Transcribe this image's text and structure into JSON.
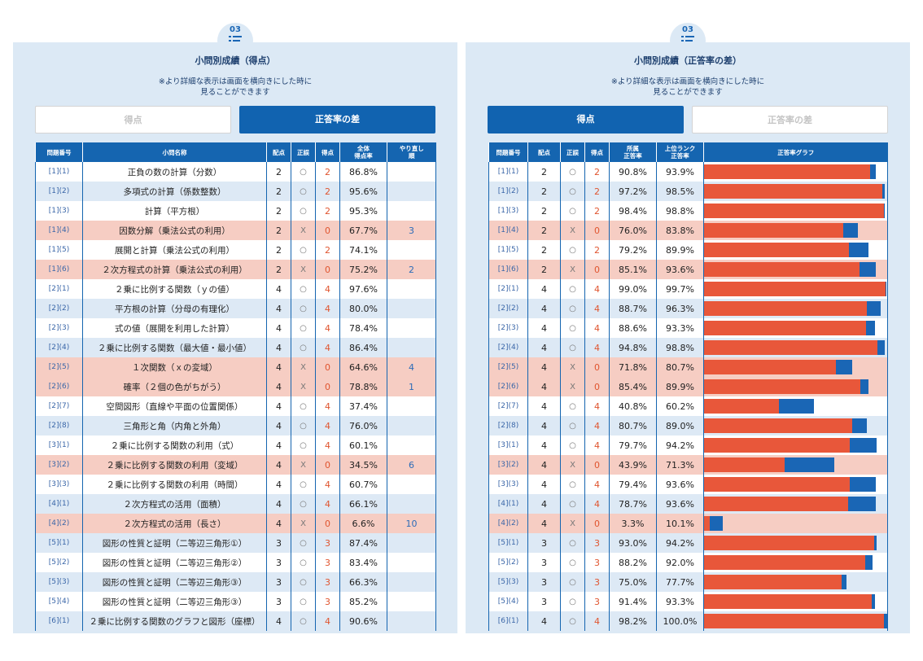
{
  "panels": [
    {
      "badge": "03",
      "title": "小問別成績（得点）",
      "note": [
        "※より詳細な表示は画面を横向きにした時に",
        "見ることができます"
      ],
      "buttons": [
        "得点",
        "正答率の差"
      ],
      "active": 1,
      "headers": [
        [
          "問題番号"
        ],
        [
          "小問名称"
        ],
        [
          "配点"
        ],
        [
          "正誤"
        ],
        [
          "得点"
        ],
        [
          "全体",
          "得点率"
        ],
        [
          "やり直し",
          "順"
        ]
      ]
    },
    {
      "badge": "03",
      "title": "小問別成績（正答率の差）",
      "note": [
        "※より詳細な表示は画面を横向きにした時に",
        "見ることができます"
      ],
      "buttons": [
        "得点",
        "正答率の差"
      ],
      "active": 0,
      "headers": [
        [
          "問題番号"
        ],
        [
          "配点"
        ],
        [
          "正誤"
        ],
        [
          "得点"
        ],
        [
          "所属",
          "正答率"
        ],
        [
          "上位ランク",
          "正答率"
        ],
        [
          "正答率グラフ"
        ]
      ]
    }
  ],
  "rows": [
    {
      "no": "[1](1)",
      "name": "正負の数の計算（分数）",
      "points": 2,
      "mark": "○",
      "score": 2,
      "rate": "86.8%",
      "own": 90.8,
      "own_label": "90.8%",
      "top": 93.9,
      "top_label": "93.9%"
    },
    {
      "no": "[1](2)",
      "name": "多項式の計算（係数整数）",
      "points": 2,
      "mark": "○",
      "score": 2,
      "rate": "95.6%",
      "own": 97.2,
      "own_label": "97.2%",
      "top": 98.5,
      "top_label": "98.5%"
    },
    {
      "no": "[1](3)",
      "name": "計算（平方根）",
      "points": 2,
      "mark": "○",
      "score": 2,
      "rate": "95.3%",
      "own": 98.4,
      "own_label": "98.4%",
      "top": 98.8,
      "top_label": "98.8%"
    },
    {
      "no": "[1](4)",
      "name": "因数分解（乗法公式の利用）",
      "points": 2,
      "mark": "X",
      "score": 0,
      "rate": "67.7%",
      "redo": 3,
      "own": 76.0,
      "own_label": "76.0%",
      "top": 83.8,
      "top_label": "83.8%"
    },
    {
      "no": "[1](5)",
      "name": "展開と計算（乗法公式の利用）",
      "points": 2,
      "mark": "○",
      "score": 2,
      "rate": "74.1%",
      "own": 79.2,
      "own_label": "79.2%",
      "top": 89.9,
      "top_label": "89.9%"
    },
    {
      "no": "[1](6)",
      "name": "２次方程式の計算（乗法公式の利用）",
      "points": 2,
      "mark": "X",
      "score": 0,
      "rate": "75.2%",
      "redo": 2,
      "own": 85.1,
      "own_label": "85.1%",
      "top": 93.6,
      "top_label": "93.6%"
    },
    {
      "no": "[2](1)",
      "name": "２乗に比例する関数（ｙの値）",
      "points": 4,
      "mark": "○",
      "score": 4,
      "rate": "97.6%",
      "own": 99.0,
      "own_label": "99.0%",
      "top": 99.7,
      "top_label": "99.7%"
    },
    {
      "no": "[2](2)",
      "name": "平方根の計算（分母の有理化）",
      "points": 4,
      "mark": "○",
      "score": 4,
      "rate": "80.0%",
      "own": 88.7,
      "own_label": "88.7%",
      "top": 96.3,
      "top_label": "96.3%"
    },
    {
      "no": "[2](3)",
      "name": "式の値（展開を利用した計算）",
      "points": 4,
      "mark": "○",
      "score": 4,
      "rate": "78.4%",
      "own": 88.6,
      "own_label": "88.6%",
      "top": 93.3,
      "top_label": "93.3%"
    },
    {
      "no": "[2](4)",
      "name": "２乗に比例する関数（最大値・最小値）",
      "points": 4,
      "mark": "○",
      "score": 4,
      "rate": "86.4%",
      "own": 94.8,
      "own_label": "94.8%",
      "top": 98.8,
      "top_label": "98.8%"
    },
    {
      "no": "[2](5)",
      "name": "１次関数（ｘの変域）",
      "points": 4,
      "mark": "X",
      "score": 0,
      "rate": "64.6%",
      "redo": 4,
      "own": 71.8,
      "own_label": "71.8%",
      "top": 80.7,
      "top_label": "80.7%"
    },
    {
      "no": "[2](6)",
      "name": "確率（２個の色がちがう）",
      "points": 4,
      "mark": "X",
      "score": 0,
      "rate": "78.8%",
      "redo": 1,
      "own": 85.4,
      "own_label": "85.4%",
      "top": 89.9,
      "top_label": "89.9%"
    },
    {
      "no": "[2](7)",
      "name": "空間図形（直線や平面の位置関係）",
      "points": 4,
      "mark": "○",
      "score": 4,
      "rate": "37.4%",
      "own": 40.8,
      "own_label": "40.8%",
      "top": 60.2,
      "top_label": "60.2%"
    },
    {
      "no": "[2](8)",
      "name": "三角形と角（内角と外角）",
      "points": 4,
      "mark": "○",
      "score": 4,
      "rate": "76.0%",
      "own": 80.7,
      "own_label": "80.7%",
      "top": 89.0,
      "top_label": "89.0%"
    },
    {
      "no": "[3](1)",
      "name": "２乗に比例する関数の利用（式）",
      "points": 4,
      "mark": "○",
      "score": 4,
      "rate": "60.1%",
      "own": 79.7,
      "own_label": "79.7%",
      "top": 94.2,
      "top_label": "94.2%"
    },
    {
      "no": "[3](2)",
      "name": "２乗に比例する関数の利用（変域）",
      "points": 4,
      "mark": "X",
      "score": 0,
      "rate": "34.5%",
      "redo": 6,
      "own": 43.9,
      "own_label": "43.9%",
      "top": 71.3,
      "top_label": "71.3%"
    },
    {
      "no": "[3](3)",
      "name": "２乗に比例する関数の利用（時間）",
      "points": 4,
      "mark": "○",
      "score": 4,
      "rate": "60.7%",
      "own": 79.4,
      "own_label": "79.4%",
      "top": 93.6,
      "top_label": "93.6%"
    },
    {
      "no": "[4](1)",
      "name": "２次方程式の活用（面積）",
      "points": 4,
      "mark": "○",
      "score": 4,
      "rate": "66.1%",
      "own": 78.7,
      "own_label": "78.7%",
      "top": 93.6,
      "top_label": "93.6%"
    },
    {
      "no": "[4](2)",
      "name": "２次方程式の活用（長さ）",
      "points": 4,
      "mark": "X",
      "score": 0,
      "rate": "6.6%",
      "redo": 10,
      "own": 3.3,
      "own_label": "3.3%",
      "top": 10.1,
      "top_label": "10.1%"
    },
    {
      "no": "[5](1)",
      "name": "図形の性質と証明（二等辺三角形①）",
      "points": 3,
      "mark": "○",
      "score": 3,
      "rate": "87.4%",
      "own": 93.0,
      "own_label": "93.0%",
      "top": 94.2,
      "top_label": "94.2%"
    },
    {
      "no": "[5](2)",
      "name": "図形の性質と証明（二等辺三角形②）",
      "points": 3,
      "mark": "○",
      "score": 3,
      "rate": "83.4%",
      "own": 88.2,
      "own_label": "88.2%",
      "top": 92.0,
      "top_label": "92.0%"
    },
    {
      "no": "[5](3)",
      "name": "図形の性質と証明（二等辺三角形③）",
      "points": 3,
      "mark": "○",
      "score": 3,
      "rate": "66.3%",
      "own": 75.0,
      "own_label": "75.0%",
      "top": 77.7,
      "top_label": "77.7%"
    },
    {
      "no": "[5](4)",
      "name": "図形の性質と証明（二等辺三角形③）",
      "points": 3,
      "mark": "○",
      "score": 3,
      "rate": "85.2%",
      "own": 91.4,
      "own_label": "91.4%",
      "top": 93.3,
      "top_label": "93.3%"
    },
    {
      "no": "[6](1)",
      "name": "２乗に比例する関数のグラフと図形（座標）",
      "points": 4,
      "mark": "○",
      "score": 4,
      "rate": "90.6%",
      "own": 98.2,
      "own_label": "98.2%",
      "top": 100.0,
      "top_label": "100.0%"
    }
  ]
}
